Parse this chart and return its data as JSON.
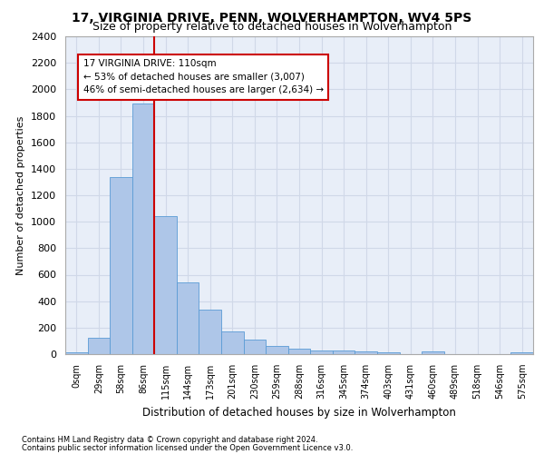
{
  "title": "17, VIRGINIA DRIVE, PENN, WOLVERHAMPTON, WV4 5PS",
  "subtitle": "Size of property relative to detached houses in Wolverhampton",
  "xlabel": "Distribution of detached houses by size in Wolverhampton",
  "ylabel": "Number of detached properties",
  "bin_labels": [
    "0sqm",
    "29sqm",
    "58sqm",
    "86sqm",
    "115sqm",
    "144sqm",
    "173sqm",
    "201sqm",
    "230sqm",
    "259sqm",
    "288sqm",
    "316sqm",
    "345sqm",
    "374sqm",
    "403sqm",
    "431sqm",
    "460sqm",
    "489sqm",
    "518sqm",
    "546sqm",
    "575sqm"
  ],
  "bar_heights": [
    15,
    125,
    1340,
    1890,
    1045,
    545,
    335,
    170,
    110,
    60,
    40,
    30,
    25,
    20,
    15,
    0,
    20,
    0,
    0,
    0,
    15
  ],
  "bar_color": "#aec6e8",
  "bar_edgecolor": "#5a9bd5",
  "property_line_x": 3.5,
  "property_line_label": "17 VIRGINIA DRIVE: 110sqm",
  "annotation_line1": "← 53% of detached houses are smaller (3,007)",
  "annotation_line2": "46% of semi-detached houses are larger (2,634) →",
  "annotation_box_color": "#ffffff",
  "annotation_box_edgecolor": "#cc0000",
  "vline_color": "#cc0000",
  "ylim": [
    0,
    2400
  ],
  "yticks": [
    0,
    200,
    400,
    600,
    800,
    1000,
    1200,
    1400,
    1600,
    1800,
    2000,
    2200,
    2400
  ],
  "grid_color": "#d0d8e8",
  "background_color": "#e8eef8",
  "footer_line1": "Contains HM Land Registry data © Crown copyright and database right 2024.",
  "footer_line2": "Contains public sector information licensed under the Open Government Licence v3.0."
}
